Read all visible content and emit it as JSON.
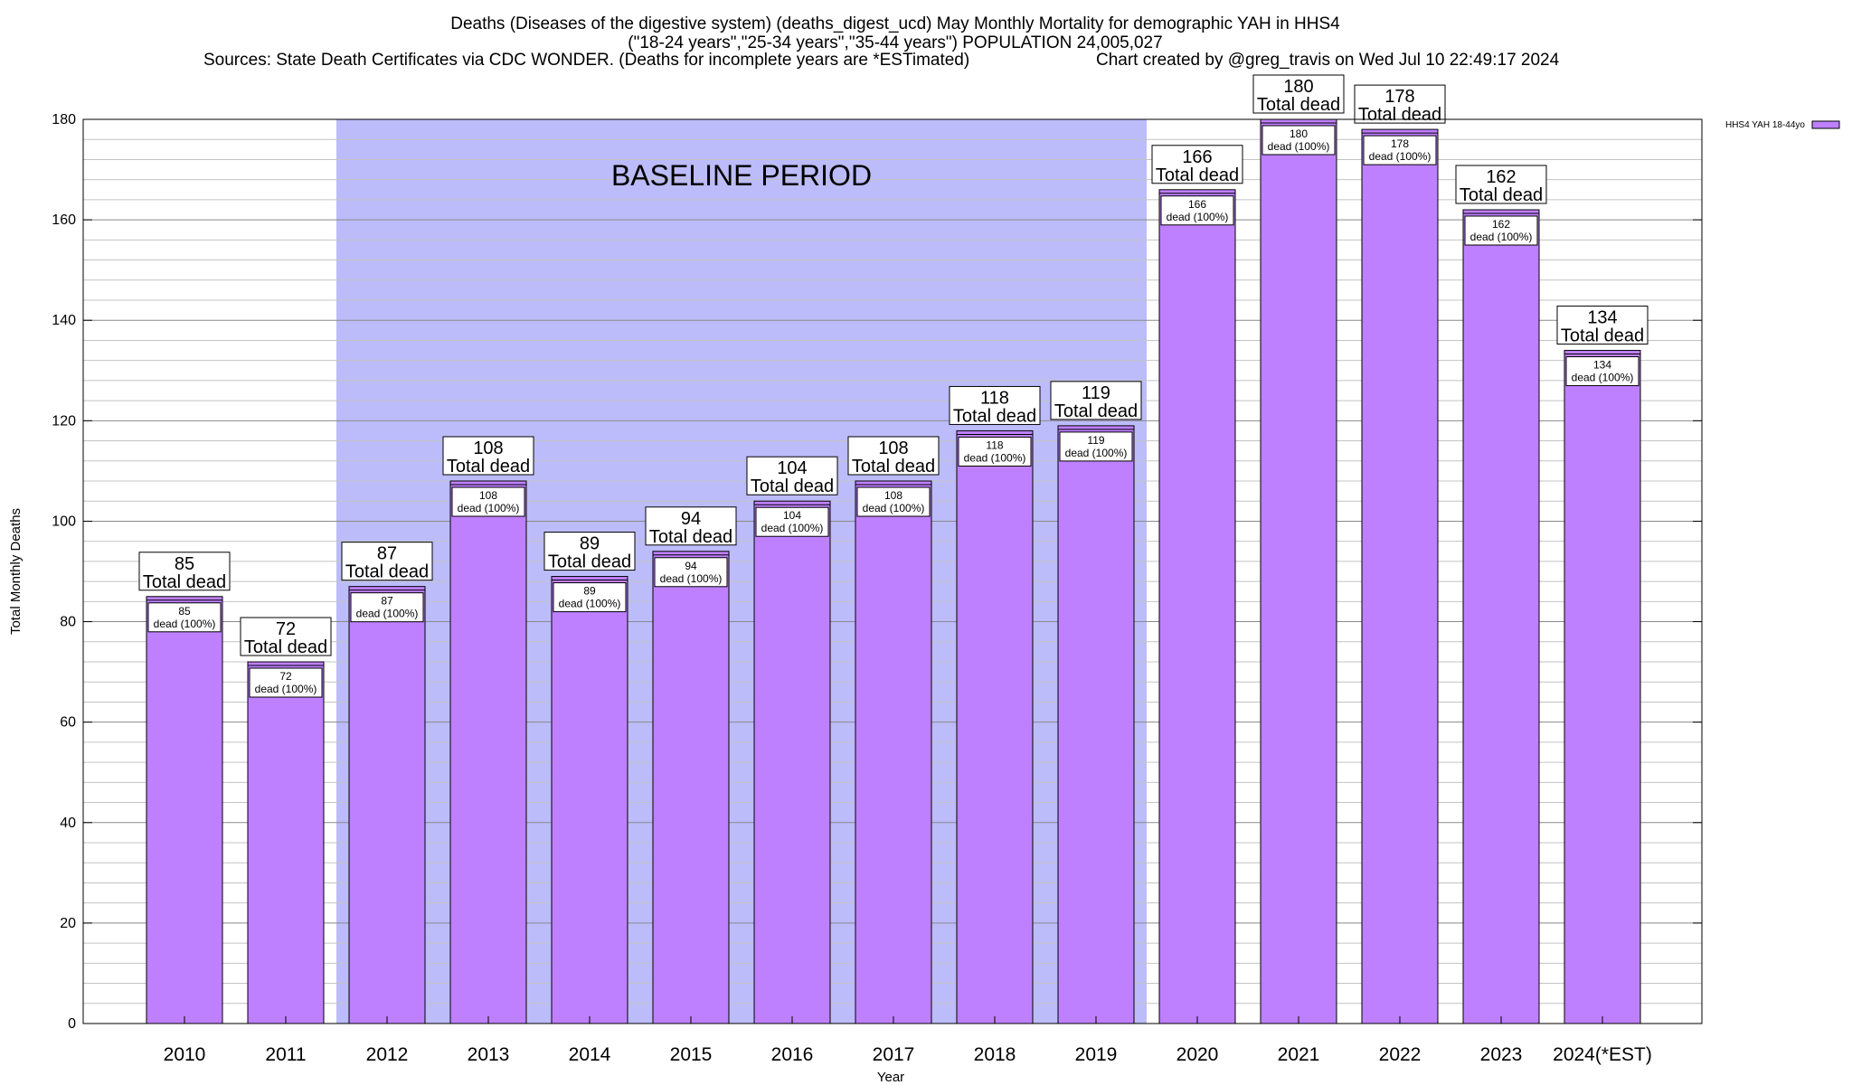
{
  "chart_data": {
    "type": "bar",
    "title_lines": [
      "Deaths (Diseases of the digestive system) (deaths_digest_ucd) May Monthly Mortality for demographic YAH in HHS4",
      "(\"18-24 years\",\"25-34 years\",\"35-44 years\") POPULATION 24,005,027",
      "Sources: State Death Certificates via CDC WONDER. (Deaths for incomplete years are *ESTimated)",
      "Chart created by @greg_travis on Wed Jul 10 22:49:17 2024"
    ],
    "xlabel": "Year",
    "ylabel": "Total Monthly Deaths",
    "ylim": [
      0,
      180
    ],
    "y_major_step": 20,
    "y_minor_step": 4,
    "grid": true,
    "categories": [
      "2010",
      "2011",
      "2012",
      "2013",
      "2014",
      "2015",
      "2016",
      "2017",
      "2018",
      "2019",
      "2020",
      "2021",
      "2022",
      "2023",
      "2024(*EST)"
    ],
    "series": [
      {
        "name": "HHS4 YAH 18-44yo",
        "color": "#bf80ff",
        "values": [
          85,
          72,
          87,
          108,
          89,
          94,
          104,
          108,
          118,
          119,
          166,
          180,
          178,
          162,
          134
        ]
      }
    ],
    "top_label_suffix": "Total dead",
    "inner_label_suffix": "dead (100%)",
    "baseline_region": {
      "label": "BASELINE PERIOD",
      "from_category": "2012",
      "to_category": "2019",
      "color": "#bcbcfa"
    },
    "legend_position": "top-right"
  }
}
